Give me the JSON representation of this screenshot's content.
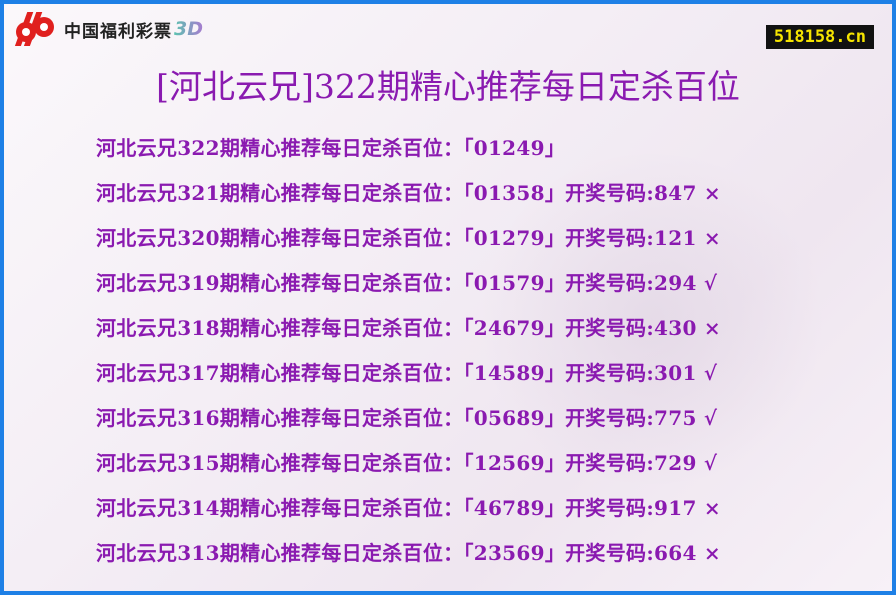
{
  "logo": {
    "text": "中国福利彩票",
    "suffix": "3D",
    "brand_color": "#e0201e"
  },
  "site_badge": "518158.cn",
  "title": "[河北云兄]322期精心推荐每日定杀百位",
  "colors": {
    "text": "#8a1ab0",
    "border": "#1e80e6"
  },
  "rows": [
    {
      "text": "河北云兄322期精心推荐每日定杀百位：「01249」"
    },
    {
      "text": "河北云兄321期精心推荐每日定杀百位：「01358」开奖号码:847 ×"
    },
    {
      "text": "河北云兄320期精心推荐每日定杀百位：「01279」开奖号码:121 ×"
    },
    {
      "text": "河北云兄319期精心推荐每日定杀百位：「01579」开奖号码:294 √"
    },
    {
      "text": "河北云兄318期精心推荐每日定杀百位：「24679」开奖号码:430 ×"
    },
    {
      "text": "河北云兄317期精心推荐每日定杀百位：「14589」开奖号码:301 √"
    },
    {
      "text": "河北云兄316期精心推荐每日定杀百位：「05689」开奖号码:775 √"
    },
    {
      "text": "河北云兄315期精心推荐每日定杀百位：「12569」开奖号码:729 √"
    },
    {
      "text": "河北云兄314期精心推荐每日定杀百位：「46789」开奖号码:917 ×"
    },
    {
      "text": "河北云兄313期精心推荐每日定杀百位：「23569」开奖号码:664 ×"
    }
  ]
}
